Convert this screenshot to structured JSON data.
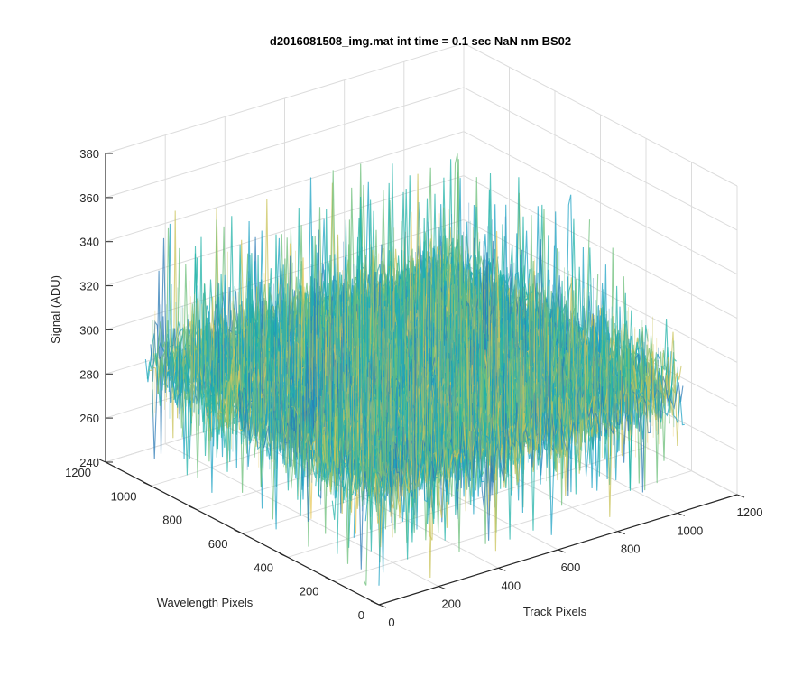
{
  "chart_data": {
    "type": "surface",
    "title": "d2016081508_img.mat int time = 0.1 sec  NaN nm BS02",
    "xlabel": "Track Pixels",
    "ylabel": "Wavelength Pixels",
    "zlabel": "Signal (ADU)",
    "xlim": [
      0,
      1200
    ],
    "ylim": [
      0,
      1200
    ],
    "zlim": [
      240,
      380
    ],
    "xticks": [
      "0",
      "200",
      "400",
      "600",
      "800",
      "1000",
      "1200"
    ],
    "yticks": [
      "0",
      "200",
      "400",
      "600",
      "800",
      "1000",
      "1200"
    ],
    "zticks": [
      "240",
      "260",
      "280",
      "300",
      "320",
      "340",
      "360",
      "380"
    ],
    "grid": true,
    "surface": {
      "x_extent": [
        0,
        1024
      ],
      "y_extent": [
        0,
        1024
      ],
      "mean_signal": 295,
      "typical_range": [
        275,
        320
      ],
      "min_spike": 242,
      "max_spike": 365,
      "colormap": [
        "#2c7bb6",
        "#1fa3c4",
        "#23b3a8",
        "#6cbf7a",
        "#c9c35a",
        "#e8c95e"
      ]
    }
  }
}
